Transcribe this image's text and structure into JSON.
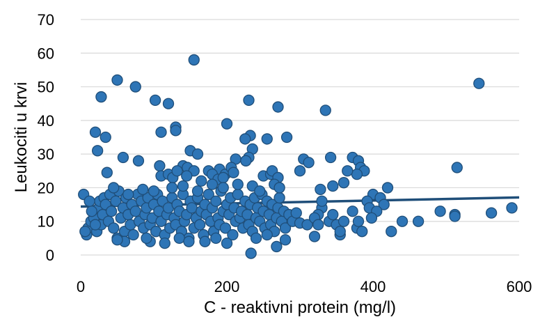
{
  "chart_data": {
    "type": "scatter",
    "xlabel": "C - reaktivni protein (mg/l)",
    "ylabel": "Leukociti u krvi",
    "xlim": [
      0,
      600
    ],
    "ylim": [
      0,
      70
    ],
    "xticks": [
      "0",
      "200",
      "400",
      "600"
    ],
    "yticks": [
      "0",
      "10",
      "20",
      "30",
      "40",
      "50",
      "60",
      "70"
    ],
    "grid": "horizontal",
    "legend": "none",
    "colors": {
      "marker_fill": "#2e75b6",
      "marker_edge": "#1f4e79",
      "trendline": "#1f4e79",
      "grid": "#d9d9d9"
    },
    "trendline": {
      "type": "linear",
      "x": [
        0,
        600
      ],
      "y": [
        14.4,
        17.1
      ]
    },
    "series": [
      {
        "points": [
          [
            155,
            58
          ],
          [
            50,
            52
          ],
          [
            545,
            51
          ],
          [
            75,
            50
          ],
          [
            28,
            47
          ],
          [
            102,
            46
          ],
          [
            120,
            45
          ],
          [
            230,
            46
          ],
          [
            270,
            44
          ],
          [
            335,
            43
          ],
          [
            200,
            39
          ],
          [
            110,
            36.5
          ],
          [
            20,
            36.5
          ],
          [
            130,
            38
          ],
          [
            130,
            37
          ],
          [
            34,
            35
          ],
          [
            232,
            35.5
          ],
          [
            225,
            34.5
          ],
          [
            255,
            34.5
          ],
          [
            282,
            35
          ],
          [
            23,
            31
          ],
          [
            150,
            31
          ],
          [
            235,
            31.5
          ],
          [
            160,
            30
          ],
          [
            230,
            29
          ],
          [
            58,
            29
          ],
          [
            79,
            28
          ],
          [
            212,
            28.5
          ],
          [
            226,
            28
          ],
          [
            305,
            28.5
          ],
          [
            312,
            27.5
          ],
          [
            342,
            29
          ],
          [
            372,
            29
          ],
          [
            380,
            28
          ],
          [
            383,
            26
          ],
          [
            515,
            26
          ],
          [
            108,
            26.5
          ],
          [
            140,
            26.5
          ],
          [
            146,
            26
          ],
          [
            155,
            25
          ],
          [
            175,
            25
          ],
          [
            190,
            25.5
          ],
          [
            198,
            24
          ],
          [
            206,
            26
          ],
          [
            209,
            24.5
          ],
          [
            36,
            24.5
          ],
          [
            110,
            23.5
          ],
          [
            120,
            24
          ],
          [
            126,
            23
          ],
          [
            132,
            25
          ],
          [
            145,
            23.5
          ],
          [
            165,
            22
          ],
          [
            180,
            24
          ],
          [
            188,
            22.5
          ],
          [
            195,
            23
          ],
          [
            250,
            23.5
          ],
          [
            260,
            24
          ],
          [
            262,
            25
          ],
          [
            270,
            23
          ],
          [
            300,
            25
          ],
          [
            328,
            19.5
          ],
          [
            345,
            20.5
          ],
          [
            360,
            21.5
          ],
          [
            388,
            25
          ],
          [
            378,
            24
          ],
          [
            365,
            25
          ],
          [
            420,
            20
          ],
          [
            400,
            18
          ],
          [
            410,
            17
          ],
          [
            392,
            16
          ],
          [
            415,
            15
          ],
          [
            395,
            14
          ],
          [
            405,
            13
          ],
          [
            372,
            13
          ],
          [
            330,
            14
          ],
          [
            325,
            12
          ],
          [
            330,
            16
          ],
          [
            340,
            10
          ],
          [
            350,
            9
          ],
          [
            355,
            6
          ],
          [
            378,
            8
          ],
          [
            380,
            10
          ],
          [
            385,
            7
          ],
          [
            398,
            11
          ],
          [
            425,
            7
          ],
          [
            440,
            10
          ],
          [
            462,
            10
          ],
          [
            492,
            13
          ],
          [
            512,
            12
          ],
          [
            512,
            11.5
          ],
          [
            562,
            12.5
          ],
          [
            590,
            14
          ],
          [
            4,
            18
          ],
          [
            8,
            6
          ],
          [
            10,
            8
          ],
          [
            14,
            10
          ],
          [
            18,
            11
          ],
          [
            22,
            7
          ],
          [
            25,
            14
          ],
          [
            26,
            16
          ],
          [
            28,
            9
          ],
          [
            30,
            12
          ],
          [
            32,
            17
          ],
          [
            34,
            15
          ],
          [
            38,
            10
          ],
          [
            40,
            18
          ],
          [
            42,
            13
          ],
          [
            45,
            8
          ],
          [
            48,
            16
          ],
          [
            50,
            5
          ],
          [
            52,
            19
          ],
          [
            55,
            11
          ],
          [
            58,
            14
          ],
          [
            60,
            7
          ],
          [
            62,
            17
          ],
          [
            65,
            12
          ],
          [
            68,
            9
          ],
          [
            70,
            15
          ],
          [
            72,
            6
          ],
          [
            75,
            13
          ],
          [
            78,
            18
          ],
          [
            80,
            10
          ],
          [
            83,
            16
          ],
          [
            86,
            8
          ],
          [
            88,
            12
          ],
          [
            90,
            14
          ],
          [
            92,
            17
          ],
          [
            95,
            9
          ],
          [
            98,
            11
          ],
          [
            100,
            15
          ],
          [
            103,
            7
          ],
          [
            105,
            18
          ],
          [
            107,
            13
          ],
          [
            110,
            10
          ],
          [
            112,
            16
          ],
          [
            115,
            6
          ],
          [
            118,
            12
          ],
          [
            120,
            14
          ],
          [
            122,
            8
          ],
          [
            125,
            17
          ],
          [
            128,
            11
          ],
          [
            130,
            9
          ],
          [
            132,
            15
          ],
          [
            135,
            13
          ],
          [
            138,
            7
          ],
          [
            140,
            18
          ],
          [
            142,
            10
          ],
          [
            145,
            12
          ],
          [
            148,
            5
          ],
          [
            150,
            16
          ],
          [
            152,
            14
          ],
          [
            155,
            8
          ],
          [
            158,
            11
          ],
          [
            160,
            17
          ],
          [
            163,
            9
          ],
          [
            165,
            13
          ],
          [
            168,
            6
          ],
          [
            170,
            15
          ],
          [
            172,
            12
          ],
          [
            175,
            18
          ],
          [
            178,
            10
          ],
          [
            180,
            14
          ],
          [
            182,
            7
          ],
          [
            185,
            16
          ],
          [
            188,
            11
          ],
          [
            190,
            9
          ],
          [
            192,
            19
          ],
          [
            195,
            13
          ],
          [
            198,
            8
          ],
          [
            200,
            15
          ],
          [
            203,
            12
          ],
          [
            205,
            17
          ],
          [
            208,
            6
          ],
          [
            210,
            14
          ],
          [
            212,
            10
          ],
          [
            215,
            18
          ],
          [
            218,
            11
          ],
          [
            220,
            13
          ],
          [
            222,
            8
          ],
          [
            225,
            16
          ],
          [
            228,
            12
          ],
          [
            230,
            9
          ],
          [
            232,
            15
          ],
          [
            235,
            7
          ],
          [
            238,
            17
          ],
          [
            240,
            11
          ],
          [
            242,
            14
          ],
          [
            245,
            10
          ],
          [
            248,
            18
          ],
          [
            250,
            13
          ],
          [
            252,
            8
          ],
          [
            255,
            16
          ],
          [
            258,
            12
          ],
          [
            260,
            9
          ],
          [
            262,
            15
          ],
          [
            265,
            7
          ],
          [
            268,
            11
          ],
          [
            270,
            14
          ],
          [
            272,
            17
          ],
          [
            275,
            10
          ],
          [
            278,
            13
          ],
          [
            280,
            8
          ],
          [
            285,
            12
          ],
          [
            290,
            10
          ],
          [
            295,
            12.5
          ],
          [
            300,
            9.5
          ],
          [
            310,
            9
          ],
          [
            320,
            11
          ],
          [
            325,
            9
          ],
          [
            345,
            12
          ],
          [
            355,
            7
          ],
          [
            360,
            10
          ],
          [
            215,
            21
          ],
          [
            235,
            20.5
          ],
          [
            245,
            19
          ],
          [
            265,
            21
          ],
          [
            272,
            20
          ],
          [
            180,
            21
          ],
          [
            195,
            20
          ],
          [
            160,
            19
          ],
          [
            140,
            20.5
          ],
          [
            125,
            20
          ],
          [
            100,
            19
          ],
          [
            85,
            19.5
          ],
          [
            65,
            18
          ],
          [
            45,
            20
          ],
          [
            15,
            13
          ],
          [
            12,
            16
          ],
          [
            6,
            7
          ],
          [
            20,
            9
          ],
          [
            60,
            4
          ],
          [
            95,
            4
          ],
          [
            115,
            3.5
          ],
          [
            135,
            5
          ],
          [
            148,
            4
          ],
          [
            170,
            4
          ],
          [
            185,
            5
          ],
          [
            200,
            3.5
          ],
          [
            233,
            0.5
          ],
          [
            268,
            2.5
          ],
          [
            280,
            4.5
          ],
          [
            320,
            5.5
          ],
          [
            255,
            6
          ],
          [
            240,
            5
          ],
          [
            90,
            5
          ],
          [
            50,
            4.5
          ]
        ]
      }
    ]
  }
}
